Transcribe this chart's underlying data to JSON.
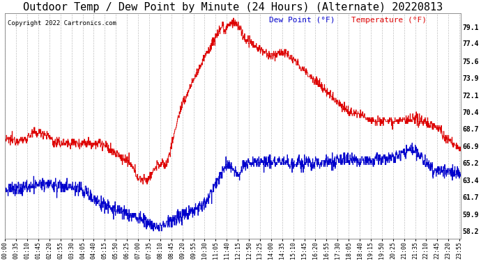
{
  "title": "Outdoor Temp / Dew Point by Minute (24 Hours) (Alternate) 20220813",
  "copyright": "Copyright 2022 Cartronics.com",
  "legend_dew": "Dew Point (°F)",
  "legend_temp": "Temperature (°F)",
  "yticks": [
    58.2,
    59.9,
    61.7,
    63.4,
    65.2,
    66.9,
    68.7,
    70.4,
    72.1,
    73.9,
    75.6,
    77.4,
    79.1
  ],
  "ylim": [
    57.4,
    80.5
  ],
  "background_color": "#ffffff",
  "grid_color": "#bbbbbb",
  "temp_color": "#dd0000",
  "dew_color": "#0000cc",
  "title_fontsize": 11,
  "tick_fontsize": 7,
  "minutes_per_day": 1440,
  "figwidth": 6.9,
  "figheight": 3.75,
  "dpi": 100
}
